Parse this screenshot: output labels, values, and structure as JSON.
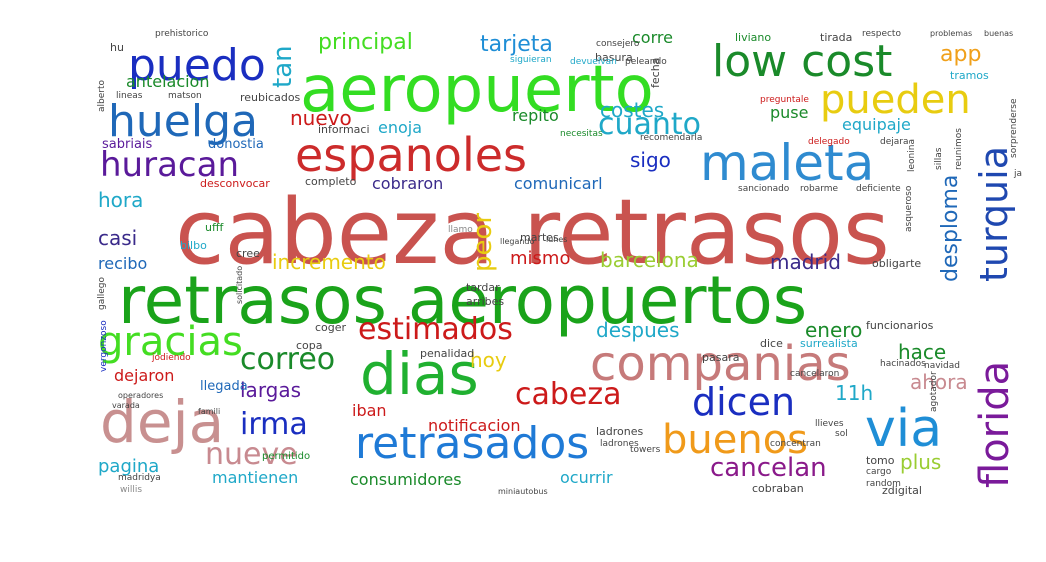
{
  "words": [
    {
      "text": "cabeza retrasos",
      "size": 90,
      "color": "#c9534f"
    },
    {
      "text": "retrasos aeropuertos",
      "size": 66,
      "color": "#1aa31a"
    },
    {
      "text": "aeropuerto",
      "size": 64,
      "color": "#33dd22"
    },
    {
      "text": "dias",
      "size": 58,
      "color": "#20b030"
    },
    {
      "text": "deja",
      "size": 58,
      "color": "#c89090"
    },
    {
      "text": "companias",
      "size": 48,
      "color": "#c67a7a"
    },
    {
      "text": "maleta",
      "size": 50,
      "color": "#2f8bd0"
    },
    {
      "text": "espanoles",
      "size": 46,
      "color": "#cc2b2b"
    },
    {
      "text": "via",
      "size": 52,
      "color": "#1f8ed6"
    },
    {
      "text": "retrasados",
      "size": 44,
      "color": "#1f7ad6"
    },
    {
      "text": "low cost",
      "size": 44,
      "color": "#1a8a2a"
    },
    {
      "text": "huelga",
      "size": 44,
      "color": "#1f68b8"
    },
    {
      "text": "puedo",
      "size": 44,
      "color": "#1a2ec0"
    },
    {
      "text": "pueden",
      "size": 40,
      "color": "#e8cc10"
    },
    {
      "text": "gracias",
      "size": 40,
      "color": "#44dd22"
    },
    {
      "text": "buenos",
      "size": 40,
      "color": "#f09a1a"
    },
    {
      "text": "florida",
      "size": 40,
      "color": "#7a1a9a"
    },
    {
      "text": "turquia",
      "size": 38,
      "color": "#1f48b0"
    },
    {
      "text": "dicen",
      "size": 38,
      "color": "#1a2ec0"
    },
    {
      "text": "huracan",
      "size": 34,
      "color": "#5a1a9a"
    },
    {
      "text": "cuanto",
      "size": 30,
      "color": "#1fa8c8"
    },
    {
      "text": "correo",
      "size": 30,
      "color": "#1a8a2a"
    },
    {
      "text": "estimados",
      "size": 30,
      "color": "#cc1a1a"
    },
    {
      "text": "cabeza",
      "size": 30,
      "color": "#cc1a1a"
    },
    {
      "text": "nueve",
      "size": 30,
      "color": "#c88a90"
    },
    {
      "text": "irma",
      "size": 30,
      "color": "#1a2ec0"
    },
    {
      "text": "cancelan",
      "size": 26,
      "color": "#8a1a8a"
    },
    {
      "text": "peor",
      "size": 26,
      "color": "#e8cc10"
    },
    {
      "text": "tan",
      "size": 26,
      "color": "#1fa8c8"
    },
    {
      "text": "principal",
      "size": 22,
      "color": "#44dd22"
    },
    {
      "text": "tarjeta",
      "size": 22,
      "color": "#1f8ed6"
    },
    {
      "text": "app",
      "size": 22,
      "color": "#f0a01a"
    },
    {
      "text": "corre",
      "size": 16,
      "color": "#1a8a2a"
    },
    {
      "text": "nuevo",
      "size": 20,
      "color": "#cc1a1a"
    },
    {
      "text": "costes",
      "size": 20,
      "color": "#1fa8c8"
    },
    {
      "text": "repito",
      "size": 16,
      "color": "#1a8a2a"
    },
    {
      "text": "enoja",
      "size": 16,
      "color": "#1fa8c8"
    },
    {
      "text": "puse",
      "size": 16,
      "color": "#1a8a2a"
    },
    {
      "text": "equipaje",
      "size": 16,
      "color": "#1fa8c8"
    },
    {
      "text": "desploma",
      "size": 22,
      "color": "#1f68b8"
    },
    {
      "text": "sigo",
      "size": 20,
      "color": "#1a2ec0"
    },
    {
      "text": "hora",
      "size": 20,
      "color": "#1fa8c8"
    },
    {
      "text": "casi",
      "size": 20,
      "color": "#3a2a8a"
    },
    {
      "text": "cobraron",
      "size": 16,
      "color": "#3a2a8a"
    },
    {
      "text": "comunicarl",
      "size": 16,
      "color": "#1f68b8"
    },
    {
      "text": "antelacion",
      "size": 16,
      "color": "#1a8a2a"
    },
    {
      "text": "sabriais",
      "size": 13,
      "color": "#5a1a9a"
    },
    {
      "text": "donostia",
      "size": 13,
      "color": "#1f68b8"
    },
    {
      "text": "informaci",
      "size": 11,
      "color": "#444444"
    },
    {
      "text": "reubicados",
      "size": 11,
      "color": "#444444"
    },
    {
      "text": "incremento",
      "size": 20,
      "color": "#e8cc10"
    },
    {
      "text": "mismo",
      "size": 18,
      "color": "#cc1a1a"
    },
    {
      "text": "barcelona",
      "size": 20,
      "color": "#9acd32"
    },
    {
      "text": "madrid",
      "size": 20,
      "color": "#3a2a8a"
    },
    {
      "text": "recibo",
      "size": 16,
      "color": "#1f68b8"
    },
    {
      "text": "bilbo",
      "size": 11,
      "color": "#1fa8c8"
    },
    {
      "text": "ufff",
      "size": 11,
      "color": "#1a8a2a"
    },
    {
      "text": "cree",
      "size": 11,
      "color": "#444444"
    },
    {
      "text": "despues",
      "size": 20,
      "color": "#1fa8c8"
    },
    {
      "text": "enero",
      "size": 20,
      "color": "#1a8a2a"
    },
    {
      "text": "hace",
      "size": 20,
      "color": "#1a8a2a"
    },
    {
      "text": "hoy",
      "size": 20,
      "color": "#e8cc10"
    },
    {
      "text": "ahora",
      "size": 20,
      "color": "#c88a90"
    },
    {
      "text": "11h",
      "size": 20,
      "color": "#1fa8c8"
    },
    {
      "text": "largas",
      "size": 20,
      "color": "#5a1a9a"
    },
    {
      "text": "dejaron",
      "size": 16,
      "color": "#cc1a1a"
    },
    {
      "text": "llegada",
      "size": 13,
      "color": "#1f68b8"
    },
    {
      "text": "iban",
      "size": 16,
      "color": "#cc1a1a"
    },
    {
      "text": "notificacion",
      "size": 16,
      "color": "#cc1a1a"
    },
    {
      "text": "ladrones",
      "size": 11,
      "color": "#444444"
    },
    {
      "text": "pagina",
      "size": 18,
      "color": "#1fa8c8"
    },
    {
      "text": "mantienen",
      "size": 16,
      "color": "#1fa8c8"
    },
    {
      "text": "consumidores",
      "size": 16,
      "color": "#1a8a2a"
    },
    {
      "text": "ocurrir",
      "size": 16,
      "color": "#1fa8c8"
    },
    {
      "text": "plus",
      "size": 20,
      "color": "#9acd32"
    },
    {
      "text": "obligarte",
      "size": 11,
      "color": "#444444"
    },
    {
      "text": "funcionarios",
      "size": 11,
      "color": "#444444"
    },
    {
      "text": "surrealista",
      "size": 11,
      "color": "#1fa8c8"
    },
    {
      "text": "pasara",
      "size": 11,
      "color": "#444444"
    },
    {
      "text": "dice",
      "size": 11,
      "color": "#444444"
    },
    {
      "text": "penalidad",
      "size": 11,
      "color": "#444444"
    },
    {
      "text": "coger",
      "size": 11,
      "color": "#444444"
    },
    {
      "text": "copa",
      "size": 11,
      "color": "#444444"
    },
    {
      "text": "completo",
      "size": 11,
      "color": "#444444"
    },
    {
      "text": "desconvocar",
      "size": 11,
      "color": "#cc1a1a"
    },
    {
      "text": "martes",
      "size": 11,
      "color": "#444444"
    },
    {
      "text": "tardar",
      "size": 11,
      "color": "#444444"
    },
    {
      "text": "arribes",
      "size": 11,
      "color": "#444444"
    },
    {
      "text": "llamo",
      "size": 9,
      "color": "#888888"
    },
    {
      "text": "cobraban",
      "size": 11,
      "color": "#444444"
    },
    {
      "text": "permitido",
      "size": 10,
      "color": "#1a8a2a"
    },
    {
      "text": "zdigital",
      "size": 11,
      "color": "#444444"
    },
    {
      "text": "tomo",
      "size": 11,
      "color": "#444444"
    },
    {
      "text": "cargo",
      "size": 9,
      "color": "#444444"
    },
    {
      "text": "random",
      "size": 9,
      "color": "#444444"
    },
    {
      "text": "madridya",
      "size": 9,
      "color": "#444444"
    },
    {
      "text": "willis",
      "size": 9,
      "color": "#888888"
    },
    {
      "text": "basura",
      "size": 11,
      "color": "#444444"
    },
    {
      "text": "fecha",
      "size": 11,
      "color": "#444444"
    },
    {
      "text": "liviano",
      "size": 11,
      "color": "#1a8a2a"
    },
    {
      "text": "tirada",
      "size": 11,
      "color": "#444444"
    },
    {
      "text": "respecto",
      "size": 9,
      "color": "#444444"
    },
    {
      "text": "tramos",
      "size": 11,
      "color": "#1fa8c8"
    },
    {
      "text": "consejero",
      "size": 9,
      "color": "#444444"
    },
    {
      "text": "siguieran",
      "size": 9,
      "color": "#1fa8c8"
    },
    {
      "text": "devuelvan",
      "size": 9,
      "color": "#1fa8c8"
    },
    {
      "text": "peleando",
      "size": 9,
      "color": "#444444"
    },
    {
      "text": "necesitas",
      "size": 9,
      "color": "#1a8a2a"
    },
    {
      "text": "preguntale",
      "size": 9,
      "color": "#cc1a1a"
    },
    {
      "text": "delegado",
      "size": 9,
      "color": "#cc1a1a"
    },
    {
      "text": "dejara",
      "size": 9,
      "color": "#444444"
    },
    {
      "text": "recomendarla",
      "size": 9,
      "color": "#444444"
    },
    {
      "text": "robarme",
      "size": 9,
      "color": "#444444"
    },
    {
      "text": "deficiente",
      "size": 9,
      "color": "#444444"
    },
    {
      "text": "sancionado",
      "size": 9,
      "color": "#444444"
    },
    {
      "text": "leonina",
      "size": 9,
      "color": "#444444"
    },
    {
      "text": "sillas",
      "size": 9,
      "color": "#444444"
    },
    {
      "text": "reunimos",
      "size": 9,
      "color": "#444444"
    },
    {
      "text": "sorprenderse",
      "size": 9,
      "color": "#444444"
    },
    {
      "text": "asqueroso",
      "size": 9,
      "color": "#444444"
    },
    {
      "text": "navidad",
      "size": 9,
      "color": "#444444"
    },
    {
      "text": "agotador",
      "size": 9,
      "color": "#444444"
    },
    {
      "text": "hacinados",
      "size": 9,
      "color": "#444444"
    },
    {
      "text": "cancelaron",
      "size": 9,
      "color": "#444444"
    },
    {
      "text": "ladrones",
      "size": 9,
      "color": "#444444"
    },
    {
      "text": "sol",
      "size": 9,
      "color": "#444444"
    },
    {
      "text": "llieves",
      "size": 9,
      "color": "#444444"
    },
    {
      "text": "concentran",
      "size": 9,
      "color": "#444444"
    },
    {
      "text": "towers",
      "size": 9,
      "color": "#444444"
    },
    {
      "text": "hu",
      "size": 11,
      "color": "#444444"
    },
    {
      "text": "prehistorico",
      "size": 9,
      "color": "#444444"
    },
    {
      "text": "alberto",
      "size": 9,
      "color": "#444444"
    },
    {
      "text": "lineas",
      "size": 9,
      "color": "#444444"
    },
    {
      "text": "matson",
      "size": 9,
      "color": "#444444"
    },
    {
      "text": "vergonzoso",
      "size": 9,
      "color": "#1a2ec0"
    },
    {
      "text": "gallego",
      "size": 9,
      "color": "#444444"
    },
    {
      "text": "jodiendo",
      "size": 9,
      "color": "#cc1a1a"
    },
    {
      "text": "operadores",
      "size": 8,
      "color": "#444444"
    },
    {
      "text": "varada",
      "size": 8,
      "color": "#444444"
    },
    {
      "text": "famili",
      "size": 8,
      "color": "#444444"
    },
    {
      "text": "solicitado",
      "size": 8,
      "color": "#444444"
    },
    {
      "text": "miniautobus",
      "size": 8,
      "color": "#444444"
    },
    {
      "text": "llegando",
      "size": 8,
      "color": "#444444"
    },
    {
      "text": "lunes",
      "size": 8,
      "color": "#444444"
    },
    {
      "text": "ja",
      "size": 9,
      "color": "#444444"
    },
    {
      "text": "problemas",
      "size": 8,
      "color": "#444444"
    },
    {
      "text": "buenas",
      "size": 8,
      "color": "#444444"
    }
  ]
}
